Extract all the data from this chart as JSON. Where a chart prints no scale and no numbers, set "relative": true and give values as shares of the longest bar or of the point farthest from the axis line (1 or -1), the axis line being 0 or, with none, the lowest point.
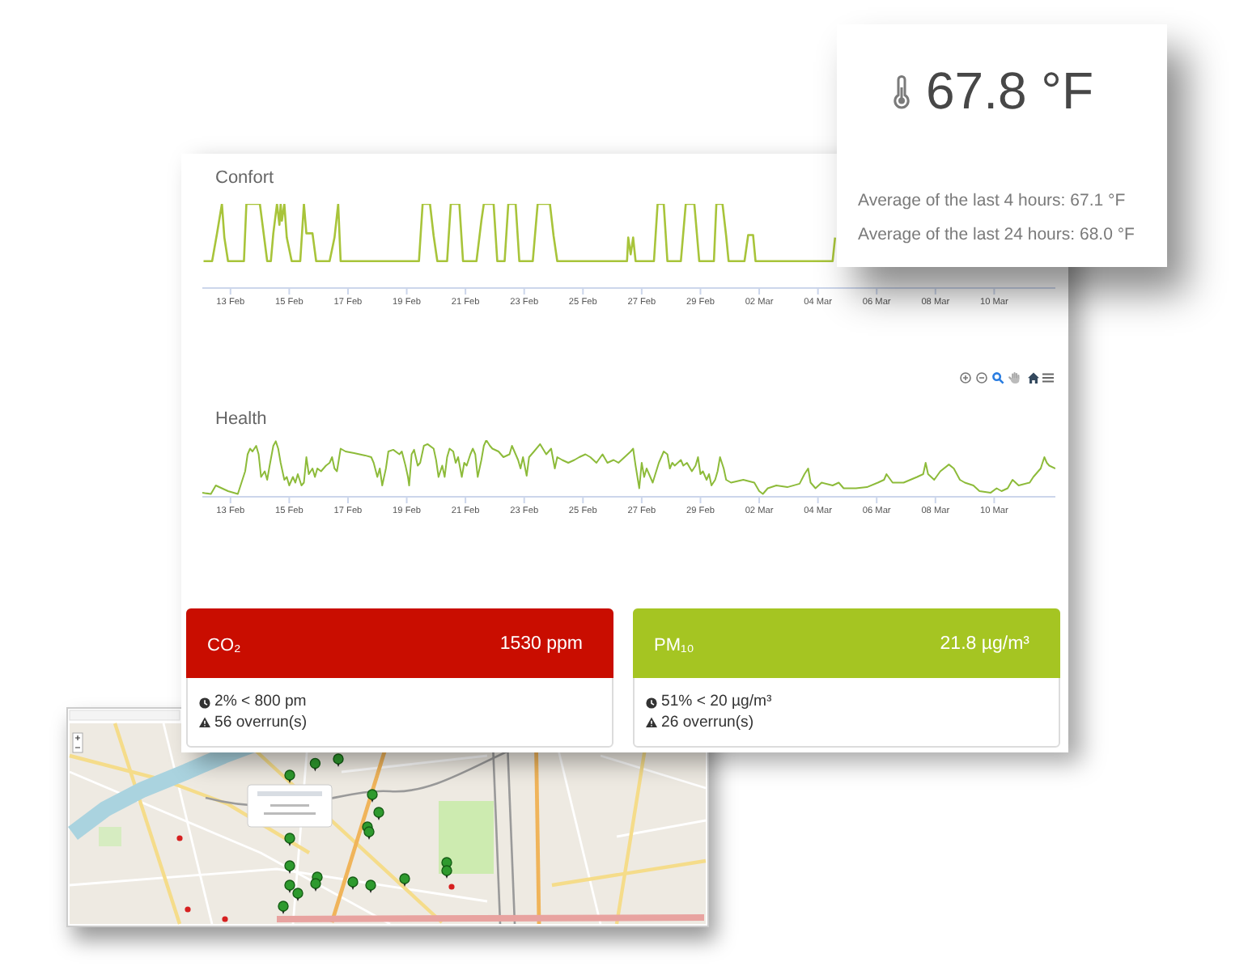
{
  "chart_data": [
    {
      "type": "line",
      "title": "Confort",
      "relative": true,
      "color": "#a8c43a",
      "xlim": [
        "--02-12T01:00",
        "--03-12T02:00"
      ],
      "xticks": [
        {
          "value": "--02-13",
          "label": "13 Feb"
        },
        {
          "value": "--02-15",
          "label": "15 Feb"
        },
        {
          "value": "--02-17",
          "label": "17 Feb"
        },
        {
          "value": "--02-19",
          "label": "19 Feb"
        },
        {
          "value": "--02-21",
          "label": "21 Feb"
        },
        {
          "value": "--02-23",
          "label": "23 Feb"
        },
        {
          "value": "--02-25",
          "label": "25 Feb"
        },
        {
          "value": "--02-27",
          "label": "27 Feb"
        },
        {
          "value": "--02-29",
          "label": "29 Feb"
        },
        {
          "value": "--03-02",
          "label": "02 Mar"
        },
        {
          "value": "--03-04",
          "label": "04 Mar"
        },
        {
          "value": "--03-06",
          "label": "06 Mar"
        },
        {
          "value": "--03-08",
          "label": "08 Mar"
        },
        {
          "value": "--03-10",
          "label": "10 Mar"
        }
      ],
      "x": [
        "--02-12T02:00",
        "--02-12T09:00",
        "--02-12T13:00",
        "--02-12T17:00",
        "--02-12T19:00",
        "--02-12T22:00",
        "--02-13T11:00",
        "--02-13T13:00",
        "--02-14T00:00",
        "--02-14T06:00",
        "--02-14T09:00",
        "--02-14T11:00",
        "--02-14T14:00",
        "--02-14T16:00",
        "--02-14T17:00",
        "--02-14T18:00",
        "--02-14T20:00",
        "--02-14T22:00",
        "--02-15T02:00",
        "--02-15T09:00",
        "--02-15T12:00",
        "--02-15T14:00",
        "--02-15T19:00",
        "--02-15T22:00",
        "--02-16T09:00",
        "--02-16T13:00",
        "--02-16T16:00",
        "--02-16T18:00",
        "--02-19T10:00",
        "--02-19T13:00",
        "--02-19T19:00",
        "--02-19T22:00",
        "--02-20T01:00",
        "--02-20T09:00",
        "--02-20T12:00",
        "--02-20T19:00",
        "--02-20T22:00",
        "--02-21T09:00",
        "--02-21T13:00",
        "--02-21T15:00",
        "--02-21T23:00",
        "--02-22T02:00",
        "--02-22T08:00",
        "--02-22T11:00",
        "--02-22T17:00",
        "--02-22T20:00",
        "--02-23T07:00",
        "--02-23T11:00",
        "--02-23T21:00",
        "--02-24T00:00",
        "--02-24T03:00",
        "--02-26T12:00",
        "--02-26T13:00",
        "--02-26T15:00",
        "--02-26T17:00",
        "--02-26T19:00",
        "--02-27T10:00",
        "--02-27T13:00",
        "--02-27T18:00",
        "--02-27T21:00",
        "--02-28T08:00",
        "--02-28T12:00",
        "--02-28T19:00",
        "--02-28T23:00",
        "--02-29T11:00",
        "--02-29T13:00",
        "--02-29T18:00",
        "--02-29T21:00",
        "--02-29T23:00",
        "--03-01T12:00",
        "--03-01T15:00",
        "--03-01T19:00",
        "--03-01T21:00",
        "--03-04T12:00",
        "--03-04T14:00"
      ],
      "values": [
        0.32,
        0.32,
        0.65,
        1,
        0.6,
        0.32,
        0.32,
        1,
        1,
        0.32,
        0.32,
        0.65,
        1,
        0.75,
        1,
        0.8,
        1,
        0.6,
        0.32,
        0.32,
        1,
        0.65,
        0.65,
        0.32,
        0.32,
        0.6,
        1,
        0.32,
        0.32,
        1,
        1,
        0.62,
        0.32,
        0.32,
        1,
        1,
        0.32,
        0.32,
        0.8,
        1,
        1,
        0.32,
        0.32,
        1,
        1,
        0.32,
        0.32,
        1,
        1,
        0.62,
        0.32,
        0.32,
        0.6,
        0.4,
        0.6,
        0.32,
        0.32,
        1,
        1,
        0.32,
        0.32,
        1,
        1,
        0.32,
        0.32,
        1,
        1,
        0.62,
        0.32,
        0.32,
        0.63,
        0.63,
        0.32,
        0.32,
        0.6
      ]
    },
    {
      "type": "other",
      "title": "67.8 °F",
      "annotations": [
        "Average of the last 4 hours: 67.1 °F",
        "Average of the last 24 hours: 68.0 °F"
      ]
    },
    {
      "type": "line",
      "title": "Health",
      "relative": true,
      "color": "#8dbb3a",
      "xlim": [
        "--02-12T01:00",
        "--03-12T02:00"
      ],
      "xticks": [
        {
          "value": "--02-13",
          "label": "13 Feb"
        },
        {
          "value": "--02-15",
          "label": "15 Feb"
        },
        {
          "value": "--02-17",
          "label": "17 Feb"
        },
        {
          "value": "--02-19",
          "label": "19 Feb"
        },
        {
          "value": "--02-21",
          "label": "21 Feb"
        },
        {
          "value": "--02-23",
          "label": "23 Feb"
        },
        {
          "value": "--02-25",
          "label": "25 Feb"
        },
        {
          "value": "--02-27",
          "label": "27 Feb"
        },
        {
          "value": "--02-29",
          "label": "29 Feb"
        },
        {
          "value": "--03-02",
          "label": "02 Mar"
        },
        {
          "value": "--03-04",
          "label": "04 Mar"
        },
        {
          "value": "--03-06",
          "label": "06 Mar"
        },
        {
          "value": "--03-08",
          "label": "08 Mar"
        },
        {
          "value": "--03-10",
          "label": "10 Mar"
        }
      ],
      "x": [
        "--02-12T01:00",
        "--02-12T08:00",
        "--02-12T12:00",
        "--02-12T17:00",
        "--02-12T22:00",
        "--02-13T06:00",
        "--02-13T09:00",
        "--02-13T12:00",
        "--02-13T14:00",
        "--02-13T16:00",
        "--02-13T18:00",
        "--02-13T21:00",
        "--02-13T23:00",
        "--02-14T01:00",
        "--02-14T04:00",
        "--02-14T06:00",
        "--02-14T08:00",
        "--02-14T11:00",
        "--02-14T13:00",
        "--02-14T15:00",
        "--02-14T17:00",
        "--02-14T20:00",
        "--02-14T22:00",
        "--02-15T00:00",
        "--02-15T03:00",
        "--02-15T05:00",
        "--02-15T07:00",
        "--02-15T10:00",
        "--02-15T12:00",
        "--02-15T14:00",
        "--02-15T16:00",
        "--02-15T19:00",
        "--02-15T21:00",
        "--02-15T23:00",
        "--02-16T02:00",
        "--02-16T06:00",
        "--02-16T09:00",
        "--02-16T11:00",
        "--02-16T13:00",
        "--02-16T15:00",
        "--02-16T18:00",
        "--02-16T22:00",
        "--02-17T05:00",
        "--02-17T14:00",
        "--02-17T19:00",
        "--02-17T21:00",
        "--02-18T00:00",
        "--02-18T02:00",
        "--02-18T04:00",
        "--02-18T07:00",
        "--02-18T09:00",
        "--02-18T13:00",
        "--02-18T18:00",
        "--02-18T20:00",
        "--02-18T23:00",
        "--02-19T01:00",
        "--02-19T02:00",
        "--02-19T04:00",
        "--02-19T06:00",
        "--02-19T09:00",
        "--02-19T11:00",
        "--02-19T14:00",
        "--02-19T17:00",
        "--02-19T22:00",
        "--02-20T00:00",
        "--02-20T02:00",
        "--02-20T05:00",
        "--02-20T07:00",
        "--02-20T09:00",
        "--02-20T11:00",
        "--02-20T14:00",
        "--02-20T16:00",
        "--02-20T18:00",
        "--02-20T21:00",
        "--02-20T23:00",
        "--02-21T01:00",
        "--02-21T04:00",
        "--02-21T06:00",
        "--02-21T08:00",
        "--02-21T10:00",
        "--02-21T13:00",
        "--02-21T15:00",
        "--02-21T17:00",
        "--02-21T20:00",
        "--02-21T22:00",
        "--02-22T03:00",
        "--02-22T07:00",
        "--02-22T12:00",
        "--02-22T14:00",
        "--02-22T19:00",
        "--02-22T21:00",
        "--02-22T23:00",
        "--02-23T02:00",
        "--02-23T04:00",
        "--02-23T08:00",
        "--02-23T13:00",
        "--02-23T18:00",
        "--02-23T22:00",
        "--02-24T01:00",
        "--02-24T03:00",
        "--02-24T07:00",
        "--02-24T12:00",
        "--02-24T17:00",
        "--02-24T21:00",
        "--02-25T02:00",
        "--02-25T06:00",
        "--02-25T11:00",
        "--02-25T16:00",
        "--02-25T20:00",
        "--02-26T01:00",
        "--02-26T05:00",
        "--02-26T10:00",
        "--02-26T15:00",
        "--02-26T17:00",
        "--02-26T19:00",
        "--02-26T22:00",
        "--02-27T00:00",
        "--02-27T02:00",
        "--02-27T04:00",
        "--02-27T07:00",
        "--02-27T09:00",
        "--02-27T14:00",
        "--02-27T18:00",
        "--02-27T21:00",
        "--02-27T23:00",
        "--02-28T01:00",
        "--02-28T03:00",
        "--02-28T08:00",
        "--02-28T10:00",
        "--02-28T13:00",
        "--02-28T17:00",
        "--02-28T20:00",
        "--02-28T22:00",
        "--02-29T00:00",
        "--02-29T02:00",
        "--02-29T05:00",
        "--02-29T07:00",
        "--02-29T09:00",
        "--02-29T12:00",
        "--02-29T14:00",
        "--02-29T16:00",
        "--02-29T19:00",
        "--02-29T21:00",
        "--03-01T01:00",
        "--03-01T11:00",
        "--03-01T20:00",
        "--03-02T00:00",
        "--03-02T03:00",
        "--03-02T07:00",
        "--03-02T14:00",
        "--03-02T23:00",
        "--03-03T09:00",
        "--03-03T13:00",
        "--03-03T16:00",
        "--03-03T18:00",
        "--03-03T22:00",
        "--03-04T03:00",
        "--03-04T12:00",
        "--03-04T17:00",
        "--03-04T21:00",
        "--03-05T07:00",
        "--03-05T16:00",
        "--03-06T01:00",
        "--03-06T06:00",
        "--03-06T08:00",
        "--03-06T13:00",
        "--03-06T22:00",
        "--03-07T09:00",
        "--03-07T14:00",
        "--03-07T16:00",
        "--03-07T18:00",
        "--03-07T23:00",
        "--03-08T04:00",
        "--03-08T11:00",
        "--03-08T15:00",
        "--03-08T20:00",
        "--03-09T00:00",
        "--03-09T07:00",
        "--03-09T12:00",
        "--03-09T21:00",
        "--03-10T02:00",
        "--03-10T06:00",
        "--03-10T11:00",
        "--03-10T15:00",
        "--03-10T20:00",
        "--03-11T05:00",
        "--03-11T08:00",
        "--03-11T14:00",
        "--03-11T17:00",
        "--03-11T19:00",
        "--03-11T21:00",
        "--03-12T02:00"
      ],
      "values": [
        0.07,
        0.05,
        0.2,
        0.15,
        0.1,
        0.05,
        0.25,
        0.45,
        0.75,
        0.85,
        0.8,
        0.9,
        0.75,
        0.35,
        0.45,
        0.3,
        0.55,
        0.9,
        0.98,
        0.85,
        0.6,
        0.3,
        0.35,
        0.2,
        0.35,
        0.25,
        0.4,
        0.2,
        0.25,
        0.7,
        0.4,
        0.5,
        0.35,
        0.5,
        0.45,
        0.55,
        0.6,
        0.7,
        0.5,
        0.45,
        0.85,
        0.8,
        0.77,
        0.73,
        0.7,
        0.6,
        0.35,
        0.5,
        0.2,
        0.5,
        0.8,
        0.83,
        0.75,
        0.8,
        0.55,
        0.35,
        0.2,
        0.75,
        0.83,
        0.55,
        0.6,
        0.9,
        0.93,
        0.85,
        0.65,
        0.35,
        0.55,
        0.35,
        0.7,
        0.85,
        0.8,
        0.6,
        0.7,
        0.35,
        0.6,
        0.55,
        0.75,
        0.85,
        0.75,
        0.35,
        0.65,
        0.9,
        1,
        0.9,
        0.85,
        0.8,
        0.7,
        0.75,
        0.9,
        0.65,
        0.5,
        0.7,
        0.37,
        0.7,
        0.8,
        0.93,
        0.75,
        0.85,
        0.5,
        0.7,
        0.65,
        0.6,
        0.65,
        0.7,
        0.75,
        0.7,
        0.6,
        0.75,
        0.6,
        0.65,
        0.6,
        0.7,
        0.8,
        0.85,
        0.55,
        0.15,
        0.6,
        0.35,
        0.5,
        0.35,
        0.25,
        0.6,
        0.8,
        0.75,
        0.5,
        0.6,
        0.55,
        0.65,
        0.55,
        0.6,
        0.45,
        0.55,
        0.7,
        0.4,
        0.45,
        0.3,
        0.4,
        0.2,
        0.3,
        0.45,
        0.7,
        0.5,
        0.3,
        0.25,
        0.3,
        0.25,
        0.1,
        0.05,
        0.15,
        0.2,
        0.17,
        0.23,
        0.4,
        0.5,
        0.25,
        0.15,
        0.25,
        0.2,
        0.25,
        0.15,
        0.15,
        0.17,
        0.25,
        0.3,
        0.4,
        0.25,
        0.25,
        0.35,
        0.4,
        0.6,
        0.4,
        0.3,
        0.45,
        0.57,
        0.5,
        0.3,
        0.25,
        0.2,
        0.1,
        0.07,
        0.15,
        0.1,
        0.15,
        0.3,
        0.2,
        0.25,
        0.35,
        0.5,
        0.7,
        0.6,
        0.55,
        0.5
      ]
    },
    {
      "type": "other",
      "title": "CO₂",
      "subtitle": "1530 ppm",
      "color": "#c90d00",
      "annotations": [
        "2% < 800 pm",
        "56 overrun(s)"
      ]
    },
    {
      "type": "other",
      "title": "PM₁₀",
      "subtitle": "21.8 µg/m³",
      "color": "#a5c522",
      "annotations": [
        "51% < 20 µg/m³",
        "26 overrun(s)"
      ]
    }
  ]
}
